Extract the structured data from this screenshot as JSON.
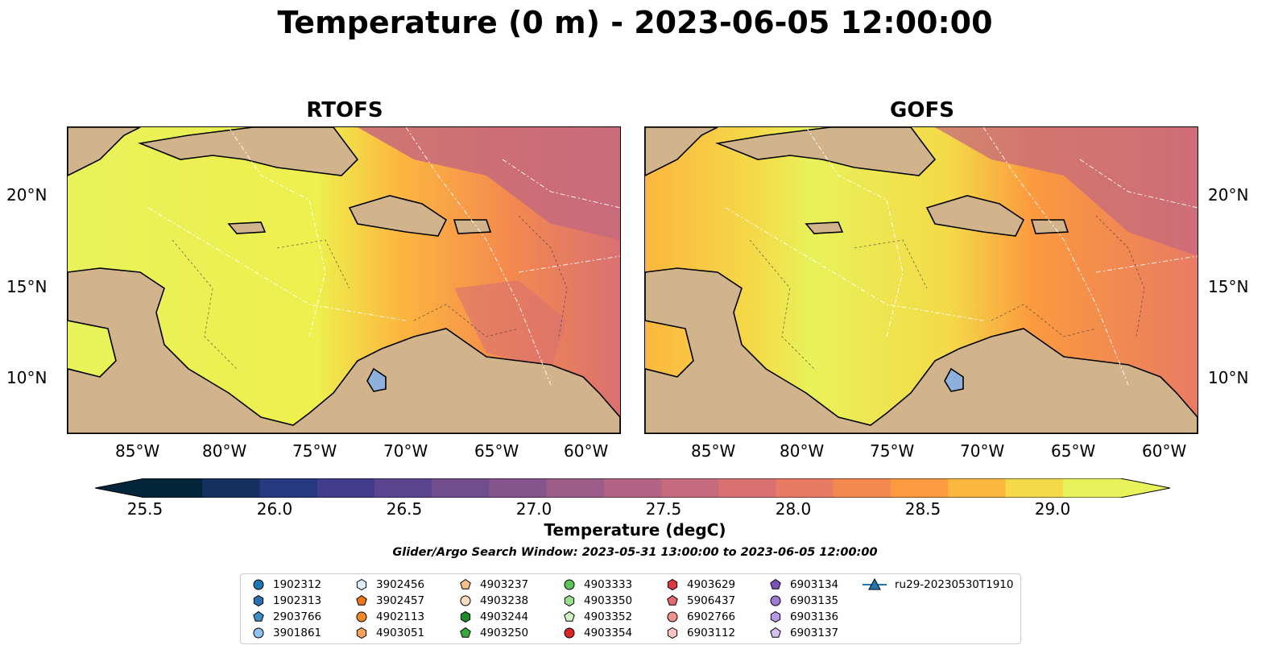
{
  "title": "Temperature (0 m) - 2023-06-05 12:00:00",
  "panels": [
    {
      "id": "rtofs",
      "title": "RTOFS"
    },
    {
      "id": "gofs",
      "title": "GOFS"
    }
  ],
  "lat_ticks": [
    "20°N",
    "15°N",
    "10°N"
  ],
  "lon_ticks": [
    "85°W",
    "80°W",
    "75°W",
    "70°W",
    "65°W",
    "60°W"
  ],
  "colorbar": {
    "label": "Temperature (degC)",
    "ticks": [
      "25.5",
      "26.0",
      "26.5",
      "27.0",
      "27.5",
      "28.0",
      "28.5",
      "29.0"
    ],
    "colors": [
      "#03253a",
      "#14305f",
      "#25397e",
      "#423c8c",
      "#5b4590",
      "#704d8d",
      "#84558b",
      "#9b5d88",
      "#b26484",
      "#c66a7d",
      "#d97172",
      "#e87b63",
      "#f4894f",
      "#fb9a3f",
      "#fcb73f",
      "#f4da48",
      "#e8f25a"
    ],
    "extend": "both"
  },
  "search_window": "Glider/Argo Search Window: 2023-05-31 13:00:00 to 2023-06-05 12:00:00",
  "legend": [
    {
      "label": "1902312",
      "shape": "circle",
      "color": "#1f77b4"
    },
    {
      "label": "1902313",
      "shape": "hexagon",
      "color": "#2c6fad"
    },
    {
      "label": "2903766",
      "shape": "pentagon",
      "color": "#3a8fc4"
    },
    {
      "label": "3901861",
      "shape": "circle",
      "color": "#8fc2ec"
    },
    {
      "label": "3902456",
      "shape": "hexagon",
      "color": "#ddeefc"
    },
    {
      "label": "3902457",
      "shape": "pentagon",
      "color": "#f07818"
    },
    {
      "label": "4902113",
      "shape": "circle",
      "color": "#f08a24"
    },
    {
      "label": "4903051",
      "shape": "hexagon",
      "color": "#f5a35a"
    },
    {
      "label": "4903237",
      "shape": "pentagon",
      "color": "#f7c08a"
    },
    {
      "label": "4903238",
      "shape": "circle",
      "color": "#fbdcbe"
    },
    {
      "label": "4903244",
      "shape": "hexagon",
      "color": "#1e8a2a"
    },
    {
      "label": "4903250",
      "shape": "pentagon",
      "color": "#36a83c"
    },
    {
      "label": "4903333",
      "shape": "circle",
      "color": "#5cc35c"
    },
    {
      "label": "4903350",
      "shape": "hexagon",
      "color": "#98de8e"
    },
    {
      "label": "4903352",
      "shape": "pentagon",
      "color": "#cdf3c4"
    },
    {
      "label": "4903354",
      "shape": "circle",
      "color": "#d62728"
    },
    {
      "label": "4903629",
      "shape": "hexagon",
      "color": "#d83a42"
    },
    {
      "label": "5906437",
      "shape": "pentagon",
      "color": "#e26a70"
    },
    {
      "label": "6902766",
      "shape": "circle",
      "color": "#f0928c"
    },
    {
      "label": "6903112",
      "shape": "hexagon",
      "color": "#f8c4c0"
    },
    {
      "label": "6903134",
      "shape": "pentagon",
      "color": "#7e52b8"
    },
    {
      "label": "6903135",
      "shape": "circle",
      "color": "#a07ad4"
    },
    {
      "label": "6903136",
      "shape": "hexagon",
      "color": "#b897e4"
    },
    {
      "label": "6903137",
      "shape": "pentagon",
      "color": "#d6c0f2"
    },
    {
      "label": "ru29-20230530T1910",
      "shape": "triangle-line",
      "color": "#1f77b4"
    }
  ]
}
